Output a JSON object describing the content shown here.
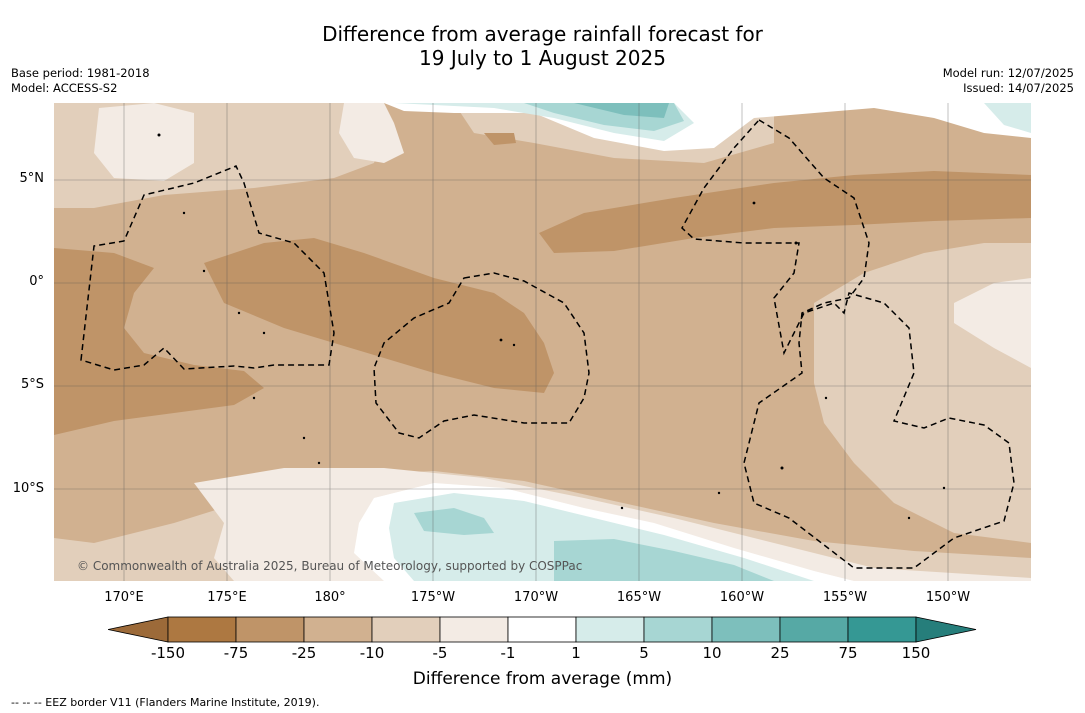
{
  "title": {
    "line1": "Difference from average rainfall forecast for",
    "line2": "19 July to 1 August 2025"
  },
  "meta": {
    "base_period": "Base period: 1981-2018",
    "model": "Model: ACCESS-S2",
    "model_run": "Model run: 12/07/2025",
    "issued": "Issued: 14/07/2025"
  },
  "axes": {
    "lat_labels": [
      "5°N",
      "0°",
      "5°S",
      "10°S"
    ],
    "lon_labels": [
      "170°E",
      "175°E",
      "180°",
      "175°W",
      "170°W",
      "165°W",
      "160°W",
      "155°W",
      "150°W"
    ]
  },
  "colorbar": {
    "title": "Difference from average (mm)",
    "ticks": [
      "-150",
      "-75",
      "-25",
      "-10",
      "-5",
      "-1",
      "1",
      "5",
      "10",
      "25",
      "75",
      "150"
    ],
    "colors": [
      "#9c6a39",
      "#ad7841",
      "#bf9468",
      "#d1b190",
      "#e2cfbb",
      "#f3ebe4",
      "#ffffff",
      "#d6ecea",
      "#a7d6d3",
      "#7dbfbc",
      "#56a9a5",
      "#359894",
      "#267e7b"
    ]
  },
  "copyright": "© Commonwealth of Australia 2025, Bureau of Meteorology, supported by COSPPac",
  "footer": "-- -- -- EEZ border V11 (Flanders Marine Institute, 2019)."
}
